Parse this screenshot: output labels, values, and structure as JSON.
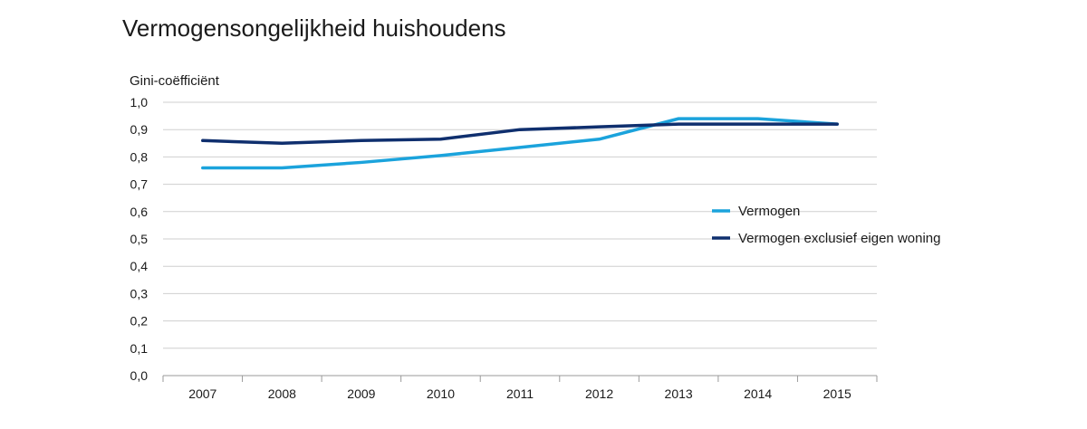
{
  "chart_data": {
    "type": "line",
    "title": "Vermogensongelijkheid huishoudens",
    "xlabel": "",
    "ylabel": "Gini-coëfficiënt",
    "categories": [
      "2007",
      "2008",
      "2009",
      "2010",
      "2011",
      "2012",
      "2013",
      "2014",
      "2015"
    ],
    "ylim": [
      0,
      1.0
    ],
    "yticks": [
      "0,0",
      "0,1",
      "0,2",
      "0,3",
      "0,4",
      "0,5",
      "0,6",
      "0,7",
      "0,8",
      "0,9",
      "1,0"
    ],
    "grid": true,
    "legend": "right",
    "series": [
      {
        "name": "Vermogen",
        "color": "#1ba3dc",
        "values": [
          0.76,
          0.76,
          0.78,
          0.805,
          0.835,
          0.865,
          0.94,
          0.94,
          0.92
        ]
      },
      {
        "name": "Vermogen exclusief eigen woning",
        "color": "#0f2f6e",
        "values": [
          0.86,
          0.85,
          0.86,
          0.865,
          0.9,
          0.91,
          0.92,
          0.92,
          0.92
        ]
      }
    ]
  }
}
